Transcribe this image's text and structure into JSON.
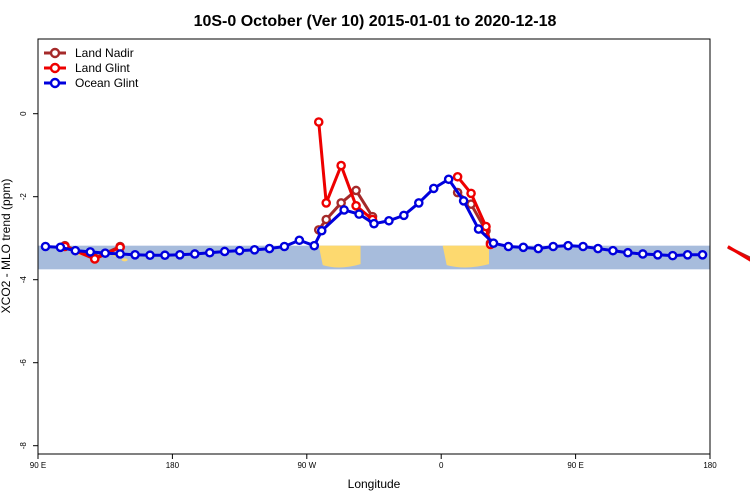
{
  "chart_data": {
    "type": "line",
    "title": "10S-0 October (Ver 10)   2015-01-01 to 2020-12-18",
    "xlabel": "Longitude",
    "ylabel": "XCO2 - MLO trend (ppm)",
    "xlim": [
      90,
      540
    ],
    "ylim": [
      -8.2,
      1.8
    ],
    "x_ticks": [
      {
        "value": 90,
        "label": "90 E"
      },
      {
        "value": 180,
        "label": "180"
      },
      {
        "value": 270,
        "label": "90 W"
      },
      {
        "value": 360,
        "label": "0"
      },
      {
        "value": 450,
        "label": "90 E"
      },
      {
        "value": 540,
        "label": "180"
      }
    ],
    "y_ticks": [
      {
        "value": 0,
        "label": "0"
      },
      {
        "value": -2,
        "label": "-2"
      },
      {
        "value": -4,
        "label": "-4"
      },
      {
        "value": -6,
        "label": "-6"
      },
      {
        "value": -8,
        "label": "-8"
      }
    ],
    "band": {
      "ymin": -3.75,
      "ymax": -3.18,
      "ocean_color": "#a7bcdc",
      "land_color": "#fdd96f"
    },
    "land_segments": [
      [
        278,
        306
      ],
      [
        361,
        392
      ]
    ],
    "legend_position": "top-left",
    "series": [
      {
        "name": "Land Nadir",
        "color": "#a52a2a",
        "x": [
          108,
          128,
          145,
          278,
          283,
          293,
          303,
          314,
          371,
          380,
          390,
          393,
          552,
          568
        ],
        "y": [
          -3.18,
          -3.48,
          -3.2,
          -2.8,
          -2.55,
          -2.15,
          -1.85,
          -2.48,
          -1.9,
          -2.18,
          -2.82,
          -3.12,
          -3.22,
          -3.5
        ]
      },
      {
        "name": "Land Glint",
        "color": "#ee0000",
        "x": [
          108,
          128,
          145,
          278,
          283,
          293,
          303,
          314,
          371,
          380,
          390,
          393,
          552,
          568
        ],
        "y": [
          -3.2,
          -3.5,
          -3.22,
          -0.2,
          -2.15,
          -1.25,
          -2.22,
          -2.55,
          -1.52,
          -1.92,
          -2.72,
          -3.15,
          -3.2,
          -3.55
        ]
      },
      {
        "name": "Ocean Glint",
        "color": "#0000dd",
        "x": [
          95,
          105,
          115,
          125,
          135,
          145,
          155,
          165,
          175,
          185,
          195,
          205,
          215,
          225,
          235,
          245,
          255,
          265,
          275,
          280,
          295,
          305,
          315,
          325,
          335,
          345,
          355,
          365,
          375,
          385,
          395,
          405,
          415,
          425,
          435,
          445,
          455,
          465,
          475,
          485,
          495,
          505,
          515,
          525,
          535
        ],
        "y": [
          -3.2,
          -3.22,
          -3.3,
          -3.33,
          -3.36,
          -3.38,
          -3.4,
          -3.41,
          -3.41,
          -3.4,
          -3.38,
          -3.35,
          -3.32,
          -3.3,
          -3.28,
          -3.25,
          -3.2,
          -3.05,
          -3.18,
          -2.82,
          -2.32,
          -2.42,
          -2.65,
          -2.58,
          -2.45,
          -2.15,
          -1.8,
          -1.58,
          -2.1,
          -2.78,
          -3.12,
          -3.2,
          -3.22,
          -3.25,
          -3.2,
          -3.18,
          -3.2,
          -3.25,
          -3.3,
          -3.35,
          -3.38,
          -3.4,
          -3.42,
          -3.4,
          -3.4
        ]
      }
    ]
  }
}
